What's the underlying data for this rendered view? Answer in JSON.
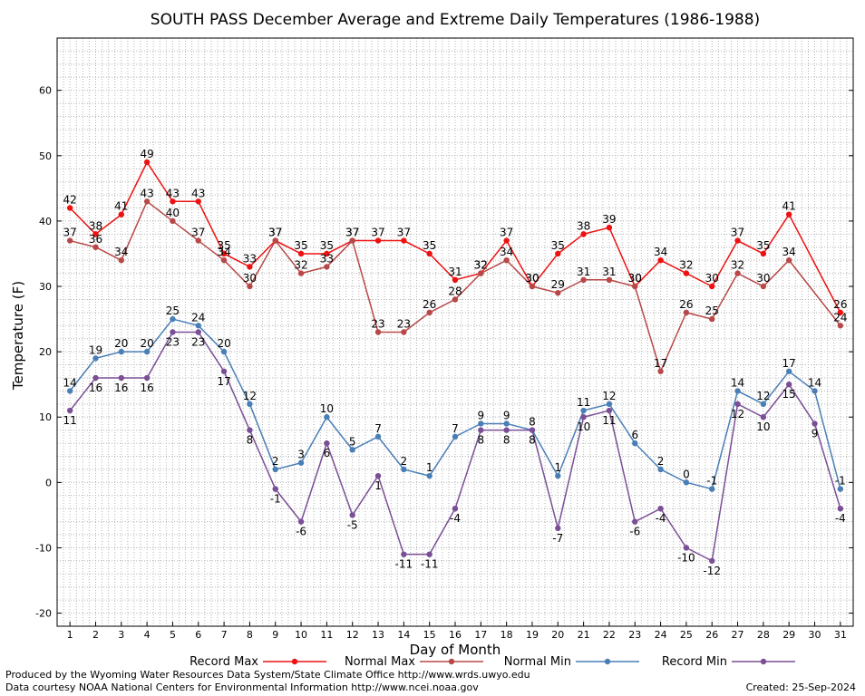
{
  "chart_data": {
    "type": "line",
    "title": "SOUTH PASS December Average and Extreme Daily Temperatures (1986-1988)",
    "xlabel": "Day of Month",
    "ylabel": "Temperature (F)",
    "xlim": [
      0.5,
      31.5
    ],
    "ylim": [
      -22,
      68
    ],
    "yticks": [
      -20,
      -10,
      0,
      10,
      20,
      30,
      40,
      50,
      60
    ],
    "x": [
      1,
      2,
      3,
      4,
      5,
      6,
      7,
      8,
      9,
      10,
      11,
      12,
      13,
      14,
      15,
      16,
      17,
      18,
      19,
      20,
      21,
      22,
      23,
      24,
      25,
      26,
      27,
      28,
      29,
      30,
      31
    ],
    "grid": true,
    "legend_position": "bottom",
    "series": [
      {
        "name": "Record Max",
        "color": "#ee1111",
        "label_pos": "above",
        "values": [
          42,
          38,
          41,
          49,
          43,
          43,
          35,
          33,
          37,
          35,
          35,
          37,
          37,
          37,
          35,
          31,
          32,
          37,
          30,
          35,
          38,
          39,
          30,
          34,
          32,
          30,
          37,
          35,
          41,
          null,
          26
        ]
      },
      {
        "name": "Normal Max",
        "color": "#b84848",
        "label_pos": "above",
        "values": [
          37,
          36,
          34,
          43,
          40,
          37,
          34,
          30,
          37,
          32,
          33,
          37,
          23,
          23,
          26,
          28,
          32,
          34,
          30,
          29,
          31,
          31,
          30,
          17,
          26,
          25,
          32,
          30,
          34,
          null,
          24
        ]
      },
      {
        "name": "Normal Min",
        "color": "#4a7fb6",
        "label_pos": "above",
        "values": [
          14,
          19,
          20,
          20,
          25,
          24,
          20,
          12,
          2,
          3,
          10,
          5,
          7,
          2,
          1,
          7,
          9,
          9,
          8,
          1,
          11,
          12,
          6,
          2,
          0,
          -1,
          14,
          12,
          17,
          14,
          -1
        ]
      },
      {
        "name": "Record Min",
        "color": "#7a4f96",
        "label_pos": "below",
        "values": [
          11,
          16,
          16,
          16,
          23,
          23,
          17,
          8,
          -1,
          -6,
          6,
          -5,
          1,
          -11,
          -11,
          -4,
          8,
          8,
          8,
          -7,
          10,
          11,
          -6,
          -4,
          -10,
          -12,
          12,
          10,
          15,
          9,
          -4
        ]
      }
    ]
  },
  "footer": {
    "producer": "Produced by the Wyoming Water Resources Data System/State Climate Office http://www.wrds.uwyo.edu",
    "courtesy": "Data courtesy NOAA National Centers for Environmental Information http://www.ncei.noaa.gov",
    "created": "Created:  25-Sep-2024"
  }
}
